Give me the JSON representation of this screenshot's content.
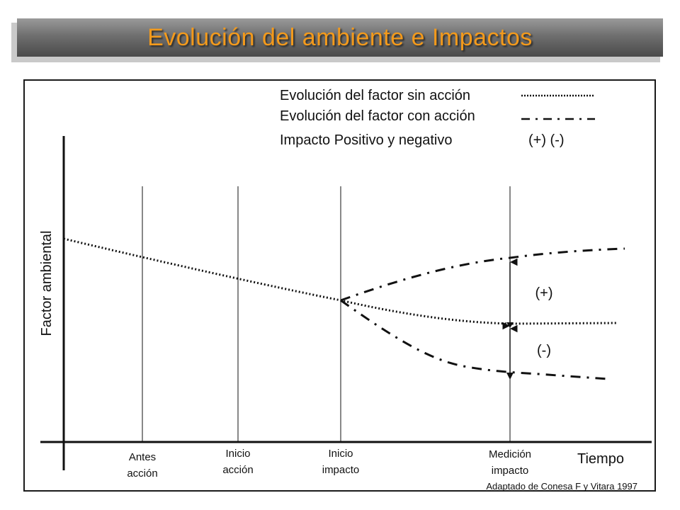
{
  "title": "Evolución del ambiente e Impactos",
  "legend": {
    "sin_accion": "Evolución del factor sin acción",
    "con_accion": "Evolución del factor con acción",
    "impacto": "Impacto Positivo y negativo",
    "impacto_signs": "(+) (-)"
  },
  "axes": {
    "y_label": "Factor ambiental",
    "x_label": "Tiempo"
  },
  "ticks": [
    {
      "line1": "Antes",
      "line2": "acción"
    },
    {
      "line1": "Inicio",
      "line2": "acción"
    },
    {
      "line1": "Inicio",
      "line2": "impacto"
    },
    {
      "line1": "Medición",
      "line2": "impacto"
    }
  ],
  "annotations": {
    "positive": "(+)",
    "negative": "(-)"
  },
  "credit": "Adaptado de Conesa F y Vitara 1997",
  "colors": {
    "title": "#f39a1c",
    "lines": "#111111"
  }
}
